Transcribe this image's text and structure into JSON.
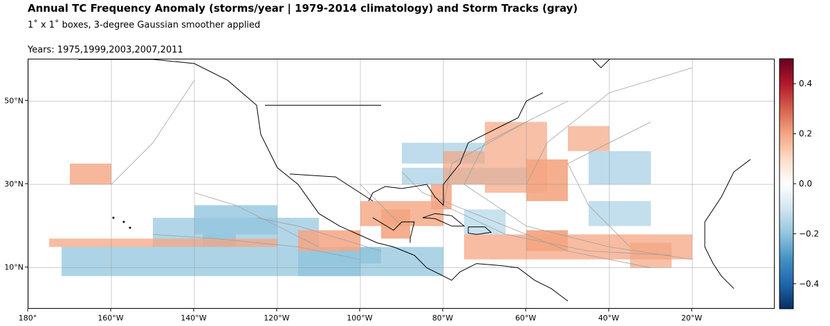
{
  "header": {
    "title": "Annual TC Frequency Anomaly (storms/year | 1979-2014 climatology) and Storm Tracks (gray)",
    "subtitle": "1˚ x 1˚  boxes, 3-degree Gaussian smoother applied",
    "years": "Years: 1975,1999,2003,2007,2011"
  },
  "map": {
    "lon_range": [
      -180,
      0
    ],
    "lat_range": [
      0,
      60
    ],
    "lon_ticks": [
      {
        "value": -180,
        "label": "180°"
      },
      {
        "value": -160,
        "label": "160°W"
      },
      {
        "value": -140,
        "label": "140°W"
      },
      {
        "value": -120,
        "label": "120°W"
      },
      {
        "value": -100,
        "label": "100°W"
      },
      {
        "value": -80,
        "label": "80°W"
      },
      {
        "value": -60,
        "label": "60°W"
      },
      {
        "value": -40,
        "label": "40°W"
      },
      {
        "value": -20,
        "label": "20°W"
      }
    ],
    "lat_ticks": [
      {
        "value": 10,
        "label": "10°N"
      },
      {
        "value": 30,
        "label": "30°N"
      },
      {
        "value": 50,
        "label": "50°N"
      }
    ],
    "gridlines": true,
    "coastline_color": "#000000",
    "track_color": "#a0a0a0",
    "positive_color": "#f4a582",
    "negative_color": "#92c5de"
  },
  "colorbar": {
    "range": [
      -0.5,
      0.5
    ],
    "ticks": [
      {
        "value": 0.4,
        "label": "0.4"
      },
      {
        "value": 0.2,
        "label": "0.2"
      },
      {
        "value": 0.0,
        "label": "0.0"
      },
      {
        "value": -0.2,
        "label": "−0.2"
      },
      {
        "value": -0.4,
        "label": "−0.4"
      }
    ],
    "colors": [
      "#053061",
      "#2166ac",
      "#4393c3",
      "#92c5de",
      "#d1e5f0",
      "#ffffff",
      "#fddbc7",
      "#f4a582",
      "#d6604d",
      "#b2182b",
      "#67001f"
    ]
  }
}
